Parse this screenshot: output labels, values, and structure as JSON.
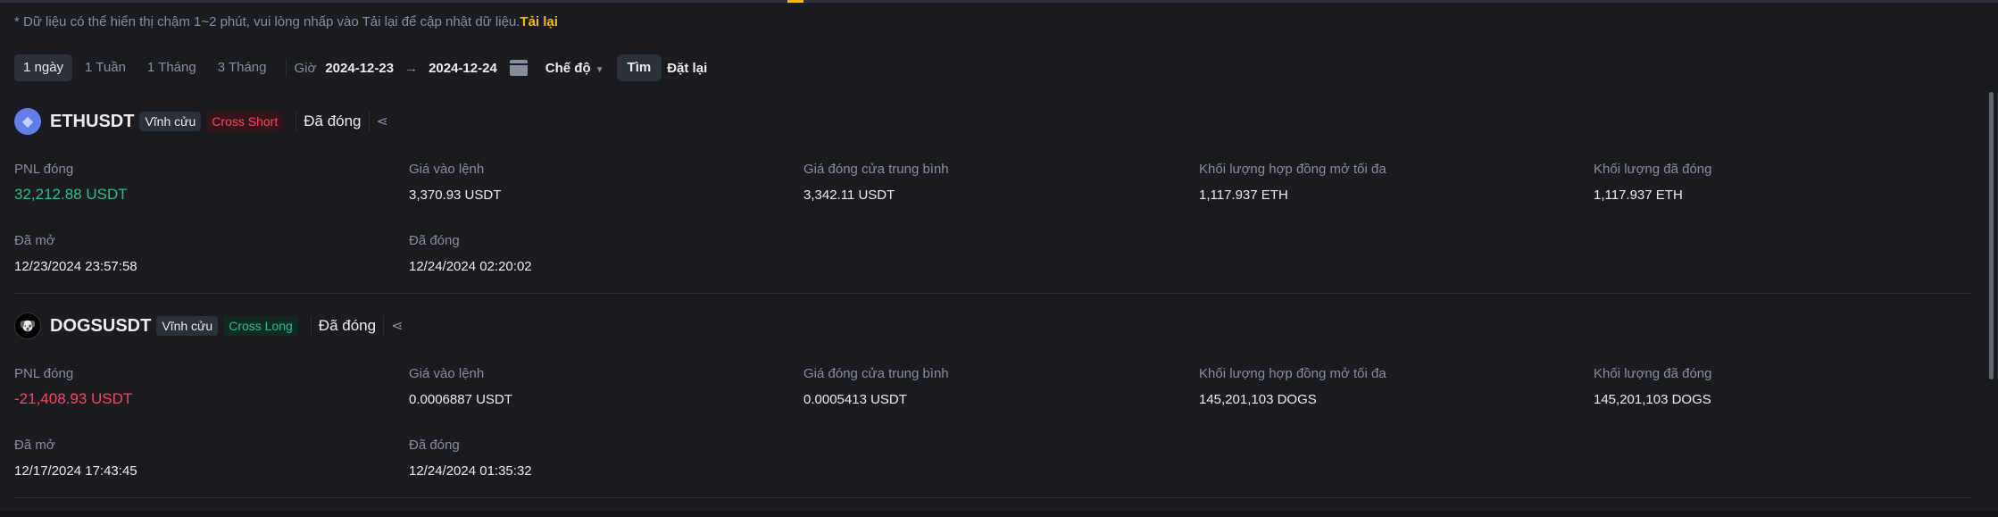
{
  "banner": {
    "text": "* Dữ liệu có thể hiển thị chậm 1~2 phút, vui lòng nhấp vào Tải lại để cập nhật dữ liệu.",
    "reload_link": "Tải lại"
  },
  "filters": {
    "periods": [
      "1 ngày",
      "1 Tuần",
      "1 Tháng",
      "3 Tháng"
    ],
    "active_period": "1 ngày",
    "time_label": "Giờ",
    "date_from": "2024-12-23",
    "arrow": "→",
    "date_to": "2024-12-24",
    "mode_label": "Chế độ",
    "mode_caret": "▼",
    "search_label": "Tìm",
    "reset_label": "Đặt lại"
  },
  "positions": [
    {
      "symbol": "ETHUSDT",
      "icon": "ethereum-icon",
      "glyph": "◆",
      "type": "Vĩnh cửu",
      "side": "Cross Short",
      "status": "Đã đóng",
      "share": "⋖",
      "fields": [
        {
          "label": "PNL đóng",
          "value": "32,212.88 USDT"
        },
        {
          "label": "Giá vào lệnh",
          "value": "3,370.93 USDT"
        },
        {
          "label": "Giá đóng cửa trung bình",
          "value": "3,342.11 USDT"
        },
        {
          "label": "Khối lượng hợp đồng mở tối đa",
          "value": "1,117.937 ETH"
        },
        {
          "label": "Khối lượng đã đóng",
          "value": "1,117.937 ETH"
        }
      ],
      "opened": {
        "label": "Đã mở",
        "value": "12/23/2024 23:57:58"
      },
      "closed": {
        "label": "Đã đóng",
        "value": "12/24/2024 02:20:02"
      }
    },
    {
      "symbol": "DOGSUSDT",
      "icon": "dogs-icon",
      "glyph": "🐶",
      "type": "Vĩnh cửu",
      "side": "Cross Long",
      "status": "Đã đóng",
      "share": "⋖",
      "fields": [
        {
          "label": "PNL đóng",
          "value": "-21,408.93 USDT"
        },
        {
          "label": "Giá vào lệnh",
          "value": "0.0006887 USDT"
        },
        {
          "label": "Giá đóng cửa trung bình",
          "value": "0.0005413 USDT"
        },
        {
          "label": "Khối lượng hợp đồng mở tối đa",
          "value": "145,201,103 DOGS"
        },
        {
          "label": "Khối lượng đã đóng",
          "value": "145,201,103 DOGS"
        }
      ],
      "opened": {
        "label": "Đã mở",
        "value": "12/17/2024 17:43:45"
      },
      "closed": {
        "label": "Đã đóng",
        "value": "12/24/2024 01:35:32"
      }
    }
  ],
  "colors": {
    "profit": "#2ebd85",
    "loss": "#f6465d",
    "accent": "#f0b90b",
    "background": "#1a1c21"
  }
}
